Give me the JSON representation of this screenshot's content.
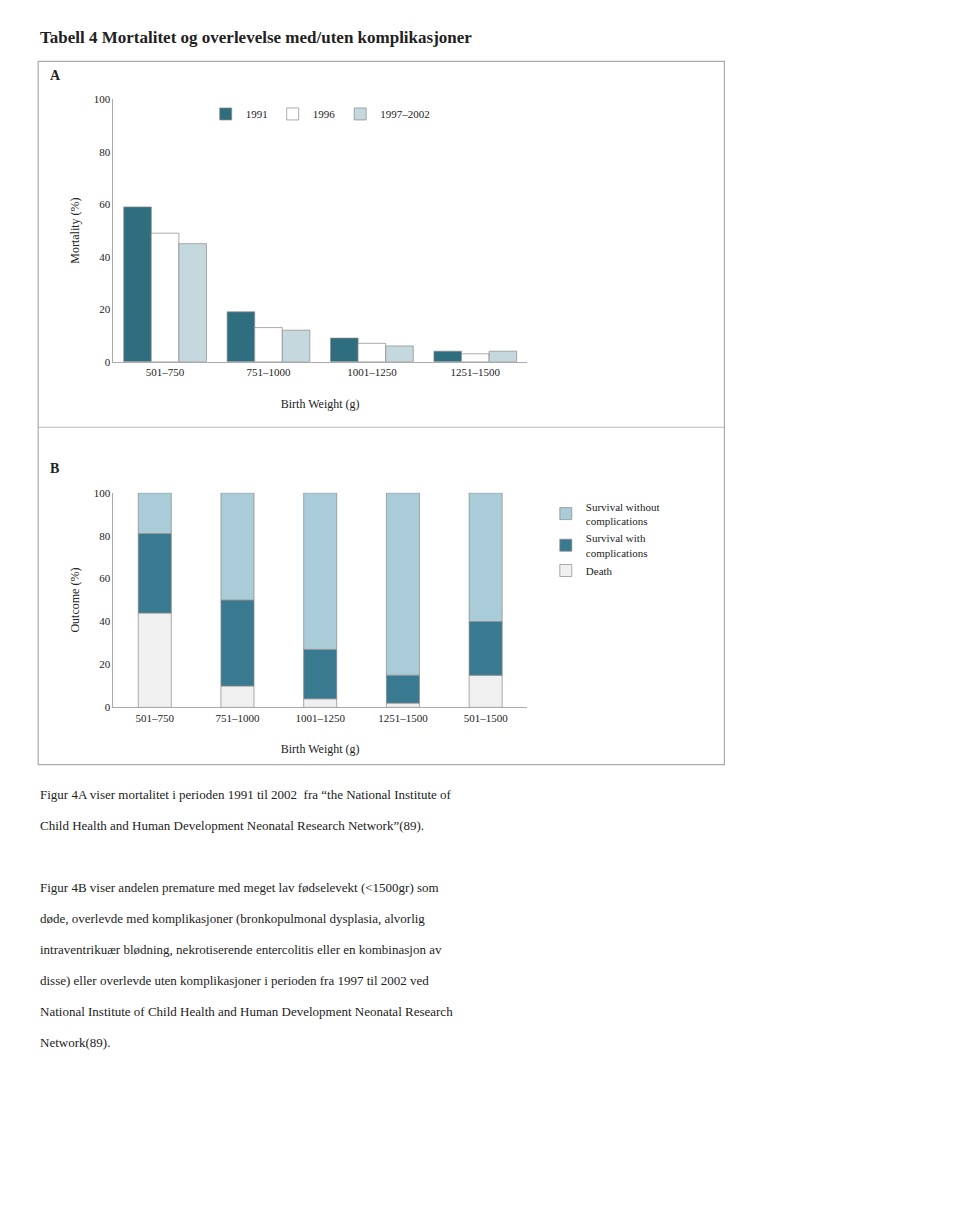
{
  "title": "Tabell 4 Mortalitet og overlevelse med/uten komplikasjoner",
  "annotations": [
    [
      "Figur 4A viser mortalitet i perioden 1991 til 2002  fra “the National Institute of",
      "Child Health and Human Development Neonatal Research Network”(89)."
    ],
    [
      "Figur 4B viser andelen premature med meget lav fødselevekt (<1500gr) som",
      "døde, overlevde med komplikasjoner (bronkopulmonal dysplasia, alvorlig",
      "intraventrikuær blødning, nekrotiserende entercolitis eller en kombinasjon av",
      "disse) eller overlevde uten komplikasjoner i perioden fra 1997 til 2002 ved",
      "National Institute of Child Health and Human Development Neonatal Research",
      "Network(89)."
    ]
  ],
  "chart_data": [
    {
      "type": "bar",
      "title": "A",
      "categories": [
        "501–750",
        "751–1000",
        "1001–1250",
        "1251–1500"
      ],
      "series": [
        {
          "name": "1991",
          "color": "#2e6e7e",
          "values": [
            59,
            19,
            9,
            4
          ]
        },
        {
          "name": "1996",
          "color": "#ffffff",
          "values": [
            49,
            13,
            7,
            3
          ]
        },
        {
          "name": "1997–2002",
          "color": "#c5d8de",
          "values": [
            45,
            12,
            6,
            4
          ]
        }
      ],
      "xlabel": "Birth Weight (g)",
      "ylabel": "Mortality (%)",
      "ylim": [
        0,
        100
      ],
      "yticks": [
        0,
        20,
        40,
        60,
        80,
        100
      ],
      "grid": false,
      "legend": "upper center"
    },
    {
      "type": "bar",
      "stacked": true,
      "title": "B",
      "categories": [
        "501–750",
        "751–1000",
        "1001–1250",
        "1251–1500",
        "501–1500"
      ],
      "series": [
        {
          "name": "Death",
          "color": "#f0f0f0",
          "values": [
            44,
            10,
            4,
            2,
            15
          ]
        },
        {
          "name": "Survival with\ncomplications",
          "color": "#3a7a90",
          "values": [
            37,
            40,
            23,
            13,
            25
          ]
        },
        {
          "name": "Survival without\ncomplications",
          "color": "#aaccd8",
          "values": [
            19,
            50,
            73,
            85,
            60
          ]
        }
      ],
      "xlabel": "Birth Weight (g)",
      "ylabel": "Outcome (%)",
      "ylim": [
        0,
        100
      ],
      "yticks": [
        0,
        20,
        40,
        60,
        80,
        100
      ],
      "grid": false,
      "legend": "right"
    }
  ]
}
